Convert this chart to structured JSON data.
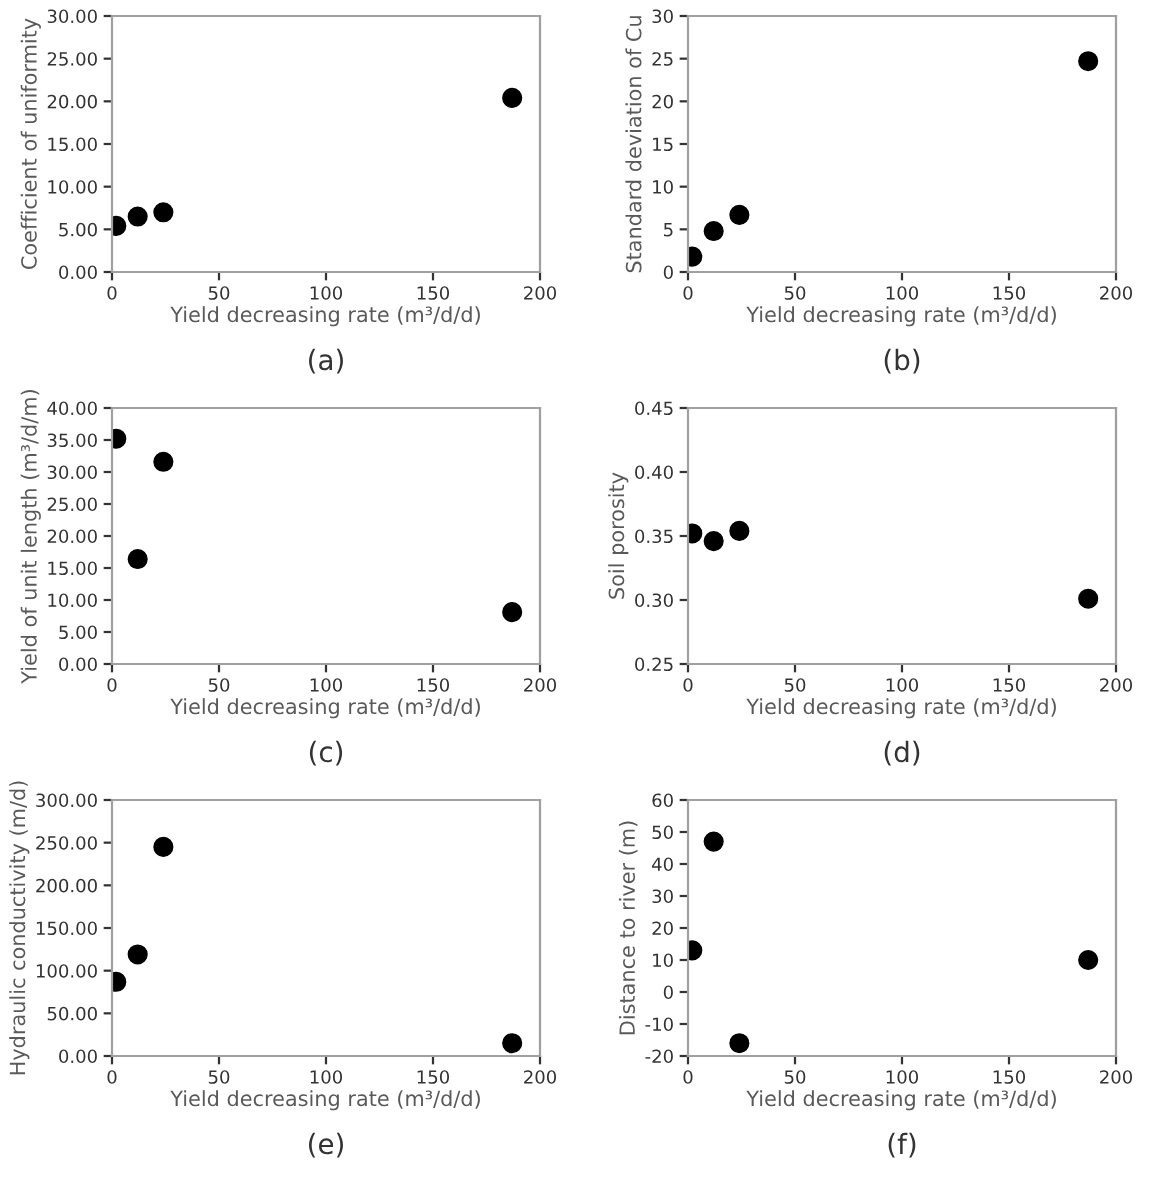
{
  "chart_data": [
    {
      "type": "scatter",
      "xlabel": "Yield decreasing rate (m³/d/d)",
      "ylabel": "Coefficient of uniformity",
      "x": [
        2,
        12,
        24,
        187
      ],
      "values": [
        5.4,
        6.5,
        7.0,
        20.4
      ],
      "color": "#000000",
      "marker": "circle",
      "xlim": [
        0,
        200
      ],
      "xticks": [
        0,
        50,
        100,
        150,
        200
      ],
      "ylim": [
        0,
        30
      ],
      "yticks": [
        {
          "value": 0,
          "label": "0.00"
        },
        {
          "value": 5,
          "label": "5.00"
        },
        {
          "value": 10,
          "label": "10.00"
        },
        {
          "value": 15,
          "label": "15.00"
        },
        {
          "value": 20,
          "label": "20.00"
        },
        {
          "value": 25,
          "label": "25.00"
        },
        {
          "value": 30,
          "label": "30.00"
        }
      ],
      "grid": false,
      "annotations": [
        "(a)"
      ]
    },
    {
      "type": "scatter",
      "xlabel": "Yield decreasing rate (m³/d/d)",
      "ylabel": "Standard deviation of Cu",
      "x": [
        2,
        12,
        24,
        187
      ],
      "values": [
        1.8,
        4.8,
        6.7,
        24.7
      ],
      "color": "#000000",
      "marker": "circle",
      "xlim": [
        0,
        200
      ],
      "xticks": [
        0,
        50,
        100,
        150,
        200
      ],
      "ylim": [
        0,
        30
      ],
      "yticks": [
        0,
        5,
        10,
        15,
        20,
        25,
        30
      ],
      "grid": false,
      "annotations": [
        "(b)"
      ]
    },
    {
      "type": "scatter",
      "xlabel": "Yield decreasing rate (m³/d/d)",
      "ylabel": "Yield of unit length (m³/d/m)",
      "x": [
        2,
        12,
        24,
        187
      ],
      "values": [
        35.2,
        16.4,
        31.6,
        8.1
      ],
      "color": "#000000",
      "marker": "circle",
      "xlim": [
        0,
        200
      ],
      "xticks": [
        0,
        50,
        100,
        150,
        200
      ],
      "ylim": [
        0,
        40
      ],
      "yticks": [
        {
          "value": 0,
          "label": "0.00"
        },
        {
          "value": 5,
          "label": "5.00"
        },
        {
          "value": 10,
          "label": "10.00"
        },
        {
          "value": 15,
          "label": "15.00"
        },
        {
          "value": 20,
          "label": "20.00"
        },
        {
          "value": 25,
          "label": "25.00"
        },
        {
          "value": 30,
          "label": "30.00"
        },
        {
          "value": 35,
          "label": "35.00"
        },
        {
          "value": 40,
          "label": "40.00"
        }
      ],
      "grid": false,
      "annotations": [
        "(c)"
      ]
    },
    {
      "type": "scatter",
      "xlabel": "Yield decreasing rate (m³/d/d)",
      "ylabel": "Soil porosity",
      "x": [
        2,
        12,
        24,
        187
      ],
      "values": [
        0.352,
        0.346,
        0.354,
        0.301
      ],
      "color": "#000000",
      "marker": "circle",
      "xlim": [
        0,
        200
      ],
      "xticks": [
        0,
        50,
        100,
        150,
        200
      ],
      "ylim": [
        0.25,
        0.45
      ],
      "yticks": [
        0.25,
        {
          "value": 0.3,
          "label": "0.30"
        },
        0.35,
        {
          "value": 0.4,
          "label": "0.40"
        },
        0.45
      ],
      "grid": false,
      "annotations": [
        "(d)"
      ]
    },
    {
      "type": "scatter",
      "xlabel": "Yield decreasing rate (m³/d/d)",
      "ylabel": "Hydraulic conductivity (m/d)",
      "x": [
        2,
        12,
        24,
        187
      ],
      "values": [
        87,
        119,
        245,
        15
      ],
      "color": "#000000",
      "marker": "circle",
      "xlim": [
        0,
        200
      ],
      "xticks": [
        0,
        50,
        100,
        150,
        200
      ],
      "ylim": [
        0,
        300
      ],
      "yticks": [
        {
          "value": 0,
          "label": "0.00"
        },
        {
          "value": 50,
          "label": "50.00"
        },
        {
          "value": 100,
          "label": "100.00"
        },
        {
          "value": 150,
          "label": "150.00"
        },
        {
          "value": 200,
          "label": "200.00"
        },
        {
          "value": 250,
          "label": "250.00"
        },
        {
          "value": 300,
          "label": "300.00"
        }
      ],
      "grid": false,
      "annotations": [
        "(e)"
      ]
    },
    {
      "type": "scatter",
      "xlabel": "Yield decreasing rate (m³/d/d)",
      "ylabel": "Distance to river (m)",
      "x": [
        2,
        12,
        24,
        187
      ],
      "values": [
        13,
        47,
        -16,
        10
      ],
      "color": "#000000",
      "marker": "circle",
      "xlim": [
        0,
        200
      ],
      "xticks": [
        0,
        50,
        100,
        150,
        200
      ],
      "ylim": [
        -20,
        60
      ],
      "yticks": [
        -20,
        -10,
        0,
        10,
        20,
        30,
        40,
        50,
        60
      ],
      "grid": false,
      "annotations": [
        "(f)"
      ]
    }
  ]
}
